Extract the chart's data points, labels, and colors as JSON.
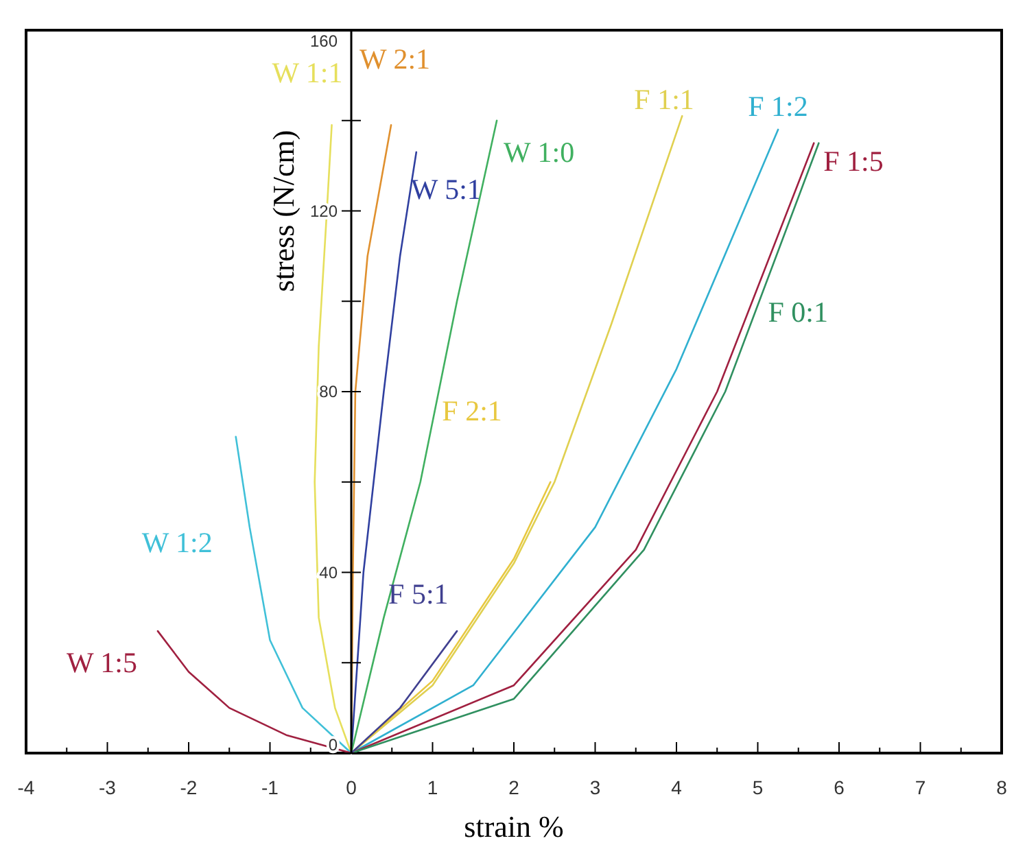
{
  "chart_data": {
    "type": "line",
    "xlabel": "strain %",
    "ylabel": "stress (N/cm)",
    "xlim": [
      -4,
      8
    ],
    "xticks": [
      -4,
      {
        "value": -3.5,
        "label": null
      },
      -3,
      {
        "value": -2.5,
        "label": null
      },
      -2,
      {
        "value": -1.5,
        "label": null
      },
      -1,
      {
        "value": -0.5,
        "label": null
      },
      0,
      {
        "value": 0.5,
        "label": null
      },
      1,
      {
        "value": 1.5,
        "label": null
      },
      2,
      {
        "value": 2.5,
        "label": null
      },
      3,
      {
        "value": 3.5,
        "label": null
      },
      4,
      {
        "value": 4.5,
        "label": null
      },
      5,
      {
        "value": 5.5,
        "label": null
      },
      6,
      {
        "value": 6.5,
        "label": null
      },
      7,
      {
        "value": 7.5,
        "label": null
      },
      8
    ],
    "ylim": [
      0,
      160
    ],
    "yticks": [
      0,
      {
        "value": 20,
        "label": null
      },
      40,
      {
        "value": 60,
        "label": null
      },
      80,
      {
        "value": 100,
        "label": null
      },
      120,
      {
        "value": 140,
        "label": null
      },
      160
    ],
    "grid": false,
    "marker": "none",
    "line_style": "solid",
    "series": [
      {
        "name": "W 1:1",
        "color": "#e6df5c",
        "x": [
          0,
          -0.2,
          -0.4,
          -0.45,
          -0.4,
          -0.3,
          -0.24
        ],
        "values": [
          0,
          10,
          30,
          60,
          90,
          120,
          139
        ]
      },
      {
        "name": "W 2:1",
        "color": "#e0902e",
        "x": [
          0,
          0.02,
          0.05,
          0.2,
          0.49
        ],
        "values": [
          0,
          40,
          80,
          110,
          139
        ]
      },
      {
        "name": "W 5:1",
        "color": "#3040a0",
        "x": [
          0,
          0.15,
          0.4,
          0.6,
          0.8
        ],
        "values": [
          0,
          40,
          80,
          110,
          133
        ]
      },
      {
        "name": "W 1:0",
        "color": "#40b060",
        "x": [
          0,
          0.4,
          0.85,
          1.3,
          1.79
        ],
        "values": [
          0,
          30,
          60,
          100,
          140
        ]
      },
      {
        "name": "F 1:1",
        "color": "#e0d050",
        "x": [
          0,
          1,
          2,
          2.5,
          3.2,
          4.07
        ],
        "values": [
          0,
          15,
          42,
          60,
          95,
          141
        ]
      },
      {
        "name": "F 1:2",
        "color": "#30b0d0",
        "x": [
          0,
          1.5,
          3,
          4,
          5.25
        ],
        "values": [
          0,
          15,
          50,
          85,
          138
        ]
      },
      {
        "name": "F 1:5",
        "color": "#a02040",
        "x": [
          0,
          2,
          3.5,
          4.5,
          5.69
        ],
        "values": [
          0,
          15,
          45,
          80,
          135
        ]
      },
      {
        "name": "F 0:1",
        "color": "#309060",
        "x": [
          0,
          2,
          3.6,
          4.6,
          5.75
        ],
        "values": [
          0,
          12,
          45,
          80,
          135
        ]
      },
      {
        "name": "F 2:1",
        "color": "#e8c840",
        "x": [
          0,
          1,
          2,
          2.45
        ],
        "values": [
          0,
          16,
          43,
          60
        ]
      },
      {
        "name": "F 5:1",
        "color": "#404090",
        "x": [
          0,
          0.6,
          1.3
        ],
        "values": [
          0,
          10,
          27
        ]
      },
      {
        "name": "W 1:2",
        "color": "#40c0d8",
        "x": [
          0,
          -0.6,
          -1,
          -1.25,
          -1.42
        ],
        "values": [
          0,
          10,
          25,
          50,
          70
        ]
      },
      {
        "name": "W 1:5",
        "color": "#a02040",
        "x": [
          0,
          -0.8,
          -1.5,
          -2,
          -2.38
        ],
        "values": [
          0,
          4,
          10,
          18,
          27
        ]
      }
    ]
  }
}
